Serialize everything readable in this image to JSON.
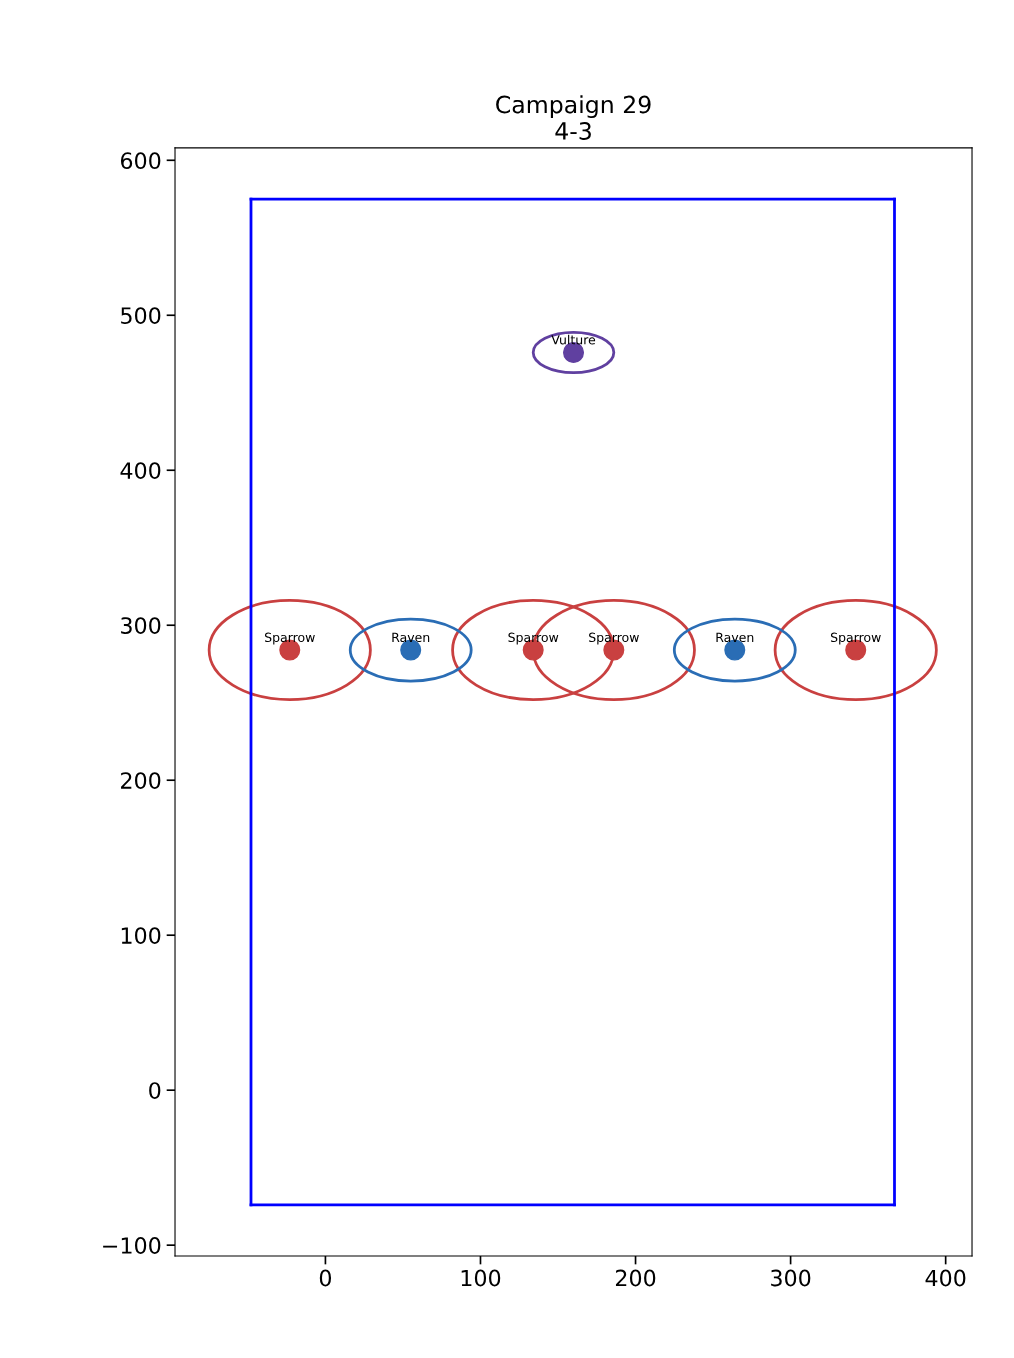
{
  "chart_data": {
    "type": "scatter",
    "title": "Campaign 29\n4-3",
    "xlim": [
      -97,
      417
    ],
    "ylim": [
      -107,
      608
    ],
    "xticks": [
      0,
      100,
      200,
      300,
      400
    ],
    "yticks": [
      -100,
      0,
      100,
      200,
      300,
      400,
      500,
      600
    ],
    "grid": false,
    "legend": false,
    "marker": "circle",
    "series": [
      {
        "color": "#c94040",
        "x": [
          -23,
          134,
          186,
          342
        ],
        "values": [
          284,
          284,
          284,
          284
        ]
      },
      {
        "color": "#2a6db5",
        "x": [
          55,
          264
        ],
        "values": [
          284,
          284
        ]
      },
      {
        "color": "#6040a0",
        "x": [
          160
        ],
        "values": [
          476
        ]
      },
      {
        "type": "line",
        "marker": "none",
        "color": "#0000ff",
        "x": [
          -48,
          367
        ],
        "values": [
          -74,
          -74
        ]
      },
      {
        "type": "line",
        "marker": "none",
        "color": "#0000ff",
        "x": [
          -48,
          367
        ],
        "values": [
          575,
          575
        ]
      },
      {
        "type": "line",
        "marker": "none",
        "color": "#0000ff",
        "x": [
          -48,
          -48
        ],
        "values": [
          -74,
          575
        ]
      },
      {
        "type": "line",
        "marker": "none",
        "color": "#0000ff",
        "x": [
          367,
          367
        ],
        "values": [
          -74,
          575
        ]
      }
    ],
    "annotations": [
      {
        "text": "Sparrow",
        "x": -23,
        "y": 284
      },
      {
        "text": "Raven",
        "x": 55,
        "y": 284
      },
      {
        "text": "Sparrow",
        "x": 134,
        "y": 284
      },
      {
        "text": "Sparrow",
        "x": 186,
        "y": 284
      },
      {
        "text": "Raven",
        "x": 264,
        "y": 284
      },
      {
        "text": "Sparrow",
        "x": 342,
        "y": 284
      },
      {
        "text": "Vulture",
        "x": 160,
        "y": 476
      }
    ]
  }
}
